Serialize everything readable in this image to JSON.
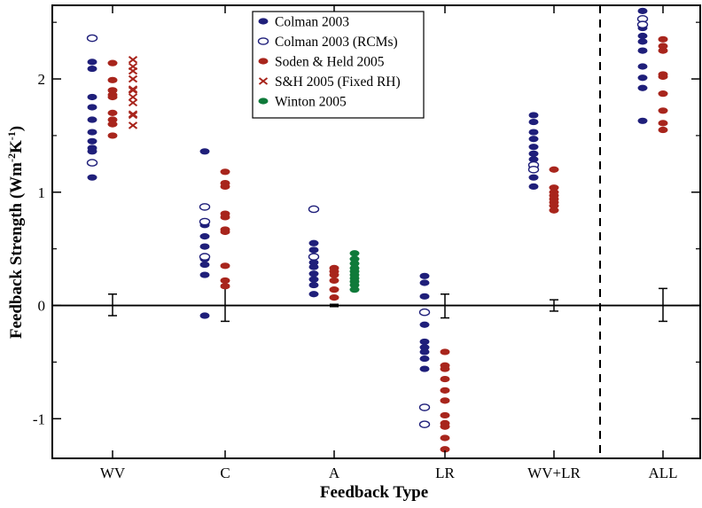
{
  "chart_data": {
    "type": "scatter",
    "xlabel": "Feedback Type",
    "ylabel_main": "Feedback Strength (Wm",
    "ylabel_sup1": "-2",
    "ylabel_mid": "K",
    "ylabel_sup2": "-1",
    "ylabel_end": ")",
    "categories": [
      "WV",
      "C",
      "A",
      "LR",
      "WV+LR",
      "ALL"
    ],
    "ylim": [
      -1.35,
      2.65
    ],
    "yticks": [
      -1,
      0,
      1,
      2
    ],
    "ytick_labels": [
      "-1",
      "0",
      "1",
      "2"
    ],
    "grid": false,
    "legend_position": "top-center",
    "divider_between": [
      "WV+LR",
      "ALL"
    ],
    "colors": {
      "navy": "#1f1f7a",
      "red": "#a8251c",
      "green": "#0f7a3a"
    },
    "series": [
      {
        "name": "Colman 2003",
        "marker": "filled-ellipse",
        "color": "#1f1f7a",
        "points": {
          "WV": [
            2.15,
            2.09,
            1.84,
            1.75,
            1.64,
            1.53,
            1.45,
            1.39,
            1.36,
            1.13
          ],
          "C": [
            1.36,
            0.71,
            0.61,
            0.52,
            0.41,
            0.36,
            0.27,
            -0.09
          ],
          "A": [
            0.55,
            0.49,
            0.43,
            0.38,
            0.34,
            0.28,
            0.23,
            0.18,
            0.1
          ],
          "LR": [
            0.26,
            0.2,
            0.08,
            -0.17,
            -0.32,
            -0.37,
            -0.41,
            -0.47,
            -0.56
          ],
          "WV+LR": [
            1.68,
            1.62,
            1.53,
            1.47,
            1.4,
            1.34,
            1.29,
            1.22,
            1.13,
            1.05
          ],
          "ALL": [
            2.6,
            2.45,
            2.38,
            2.33,
            2.25,
            2.11,
            2.01,
            1.92,
            1.63
          ]
        }
      },
      {
        "name": "Colman 2003 (RCMs)",
        "marker": "open-ellipse",
        "color": "#1f1f7a",
        "points": {
          "WV": [
            2.36,
            1.26
          ],
          "C": [
            0.87,
            0.74,
            0.43
          ],
          "A": [
            0.85,
            0.43
          ],
          "LR": [
            -0.06,
            -0.9,
            -1.05
          ],
          "WV+LR": [
            1.24,
            1.2
          ],
          "ALL": [
            2.53,
            2.48
          ]
        }
      },
      {
        "name": "Soden & Held 2005",
        "marker": "filled-ellipse",
        "color": "#a8251c",
        "points": {
          "WV": [
            2.14,
            1.99,
            1.9,
            1.86,
            1.84,
            1.7,
            1.64,
            1.6,
            1.5
          ],
          "C": [
            1.18,
            1.08,
            1.05,
            0.81,
            0.78,
            0.67,
            0.65,
            0.35,
            0.22,
            0.17
          ],
          "A": [
            0.33,
            0.3,
            0.27,
            0.22,
            0.14,
            0.07
          ],
          "LR": [
            -0.41,
            -0.53,
            -0.56,
            -0.65,
            -0.75,
            -0.84,
            -0.97,
            -1.04,
            -1.07,
            -1.17,
            -1.27
          ],
          "WV+LR": [
            1.2,
            1.04,
            1.0,
            0.97,
            0.94,
            0.91,
            0.88,
            0.84
          ],
          "ALL": [
            2.35,
            2.29,
            2.25,
            2.04,
            2.02,
            1.87,
            1.72,
            1.61,
            1.55
          ]
        }
      },
      {
        "name": "S&H 2005 (Fixed RH)",
        "marker": "cross",
        "color": "#a8251c",
        "points": {
          "WV": [
            2.17,
            2.11,
            2.07,
            2.0,
            1.91,
            1.9,
            1.84,
            1.79,
            1.69,
            1.68,
            1.59
          ]
        }
      },
      {
        "name": "Winton 2005",
        "marker": "filled-ellipse",
        "color": "#0f7a3a",
        "points": {
          "A": [
            0.46,
            0.41,
            0.37,
            0.33,
            0.3,
            0.27,
            0.24,
            0.21,
            0.18,
            0.14
          ]
        }
      }
    ],
    "error_bars": [
      {
        "category": "WV",
        "low": -0.09,
        "high": 0.1
      },
      {
        "category": "C",
        "low": -0.14,
        "high": 0.18
      },
      {
        "category": "A",
        "low": -0.01,
        "high": 0.01
      },
      {
        "category": "LR",
        "low": -0.11,
        "high": 0.1
      },
      {
        "category": "WV+LR",
        "low": -0.05,
        "high": 0.05
      },
      {
        "category": "ALL",
        "low": -0.14,
        "high": 0.15
      }
    ]
  }
}
